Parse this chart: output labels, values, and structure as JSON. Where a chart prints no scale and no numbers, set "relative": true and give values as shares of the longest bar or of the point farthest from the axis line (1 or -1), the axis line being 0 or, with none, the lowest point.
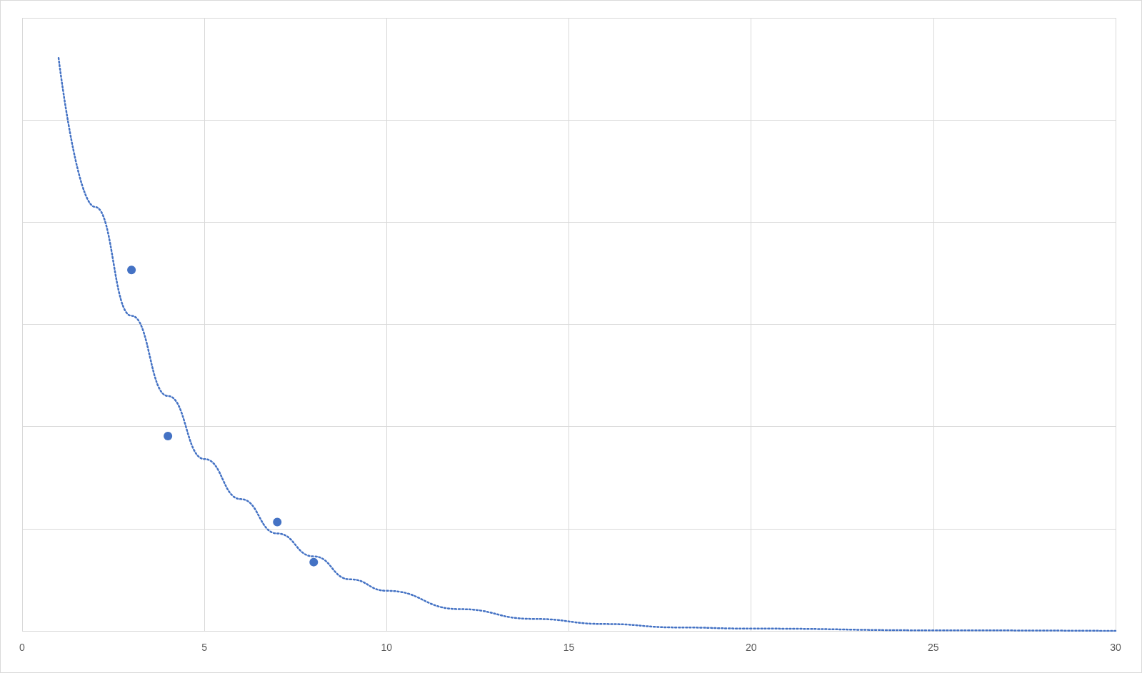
{
  "chart_data": {
    "type": "scatter",
    "relative": true,
    "xlim": [
      0,
      30
    ],
    "xticks": [
      0,
      5,
      10,
      15,
      20,
      25,
      30
    ],
    "grid": true,
    "series": [
      {
        "color": "#4472c4",
        "marker": "circle",
        "x": [
          3,
          4,
          7,
          8
        ],
        "values": [
          0.63,
          0.34,
          0.19,
          0.12
        ]
      },
      {
        "type": "line",
        "color": "#4472c4",
        "marker": "none",
        "line_style": "dotted",
        "x": [
          1,
          2,
          3,
          4,
          5,
          6,
          7,
          8,
          9,
          10,
          12,
          14,
          16,
          18,
          20,
          25,
          30
        ],
        "values": [
          1,
          0.74,
          0.55,
          0.41,
          0.3,
          0.23,
          0.17,
          0.13,
          0.09,
          0.07,
          0.038,
          0.021,
          0.012,
          0.006,
          0.004,
          0.001,
          0
        ]
      }
    ]
  }
}
